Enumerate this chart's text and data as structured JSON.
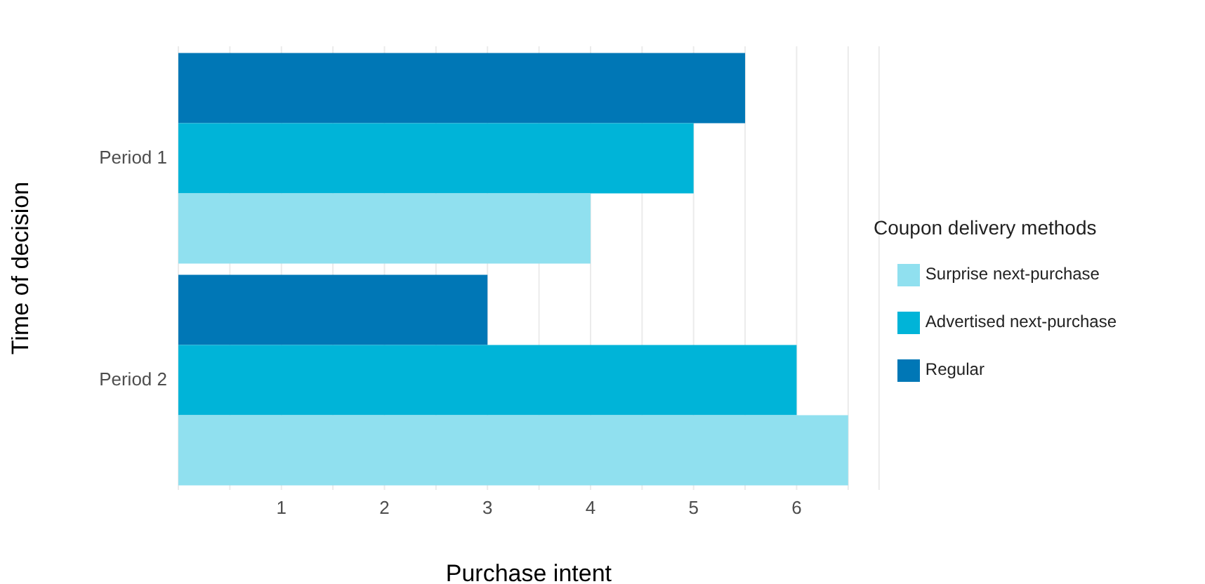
{
  "chart_data": {
    "type": "bar",
    "orientation": "horizontal",
    "xlabel": "Purchase intent",
    "ylabel": "Time of decision",
    "legend_title": "Coupon delivery methods",
    "legend": "right",
    "grid": "x",
    "categories": [
      "Period 1",
      "Period 2"
    ],
    "series": [
      {
        "name": "Regular",
        "color": "#0077b6",
        "values": [
          5.5,
          3
        ]
      },
      {
        "name": "Advertised next-purchase",
        "color": "#00b4d8",
        "values": [
          5,
          6
        ]
      },
      {
        "name": "Surprise next-purchase",
        "color": "#90e0ef",
        "values": [
          4,
          6.5
        ]
      }
    ],
    "xlim": [
      0,
      6.8
    ],
    "xticks": [
      {
        "value": 0,
        "label": null
      },
      {
        "value": 0.5,
        "label": null
      },
      1,
      {
        "value": 1.5,
        "label": null
      },
      2,
      {
        "value": 2.5,
        "label": null
      },
      3,
      {
        "value": 3.5,
        "label": null
      },
      4,
      {
        "value": 4.5,
        "label": null
      },
      5,
      {
        "value": 5.5,
        "label": null
      },
      6,
      {
        "value": 6.5,
        "label": null
      }
    ]
  }
}
